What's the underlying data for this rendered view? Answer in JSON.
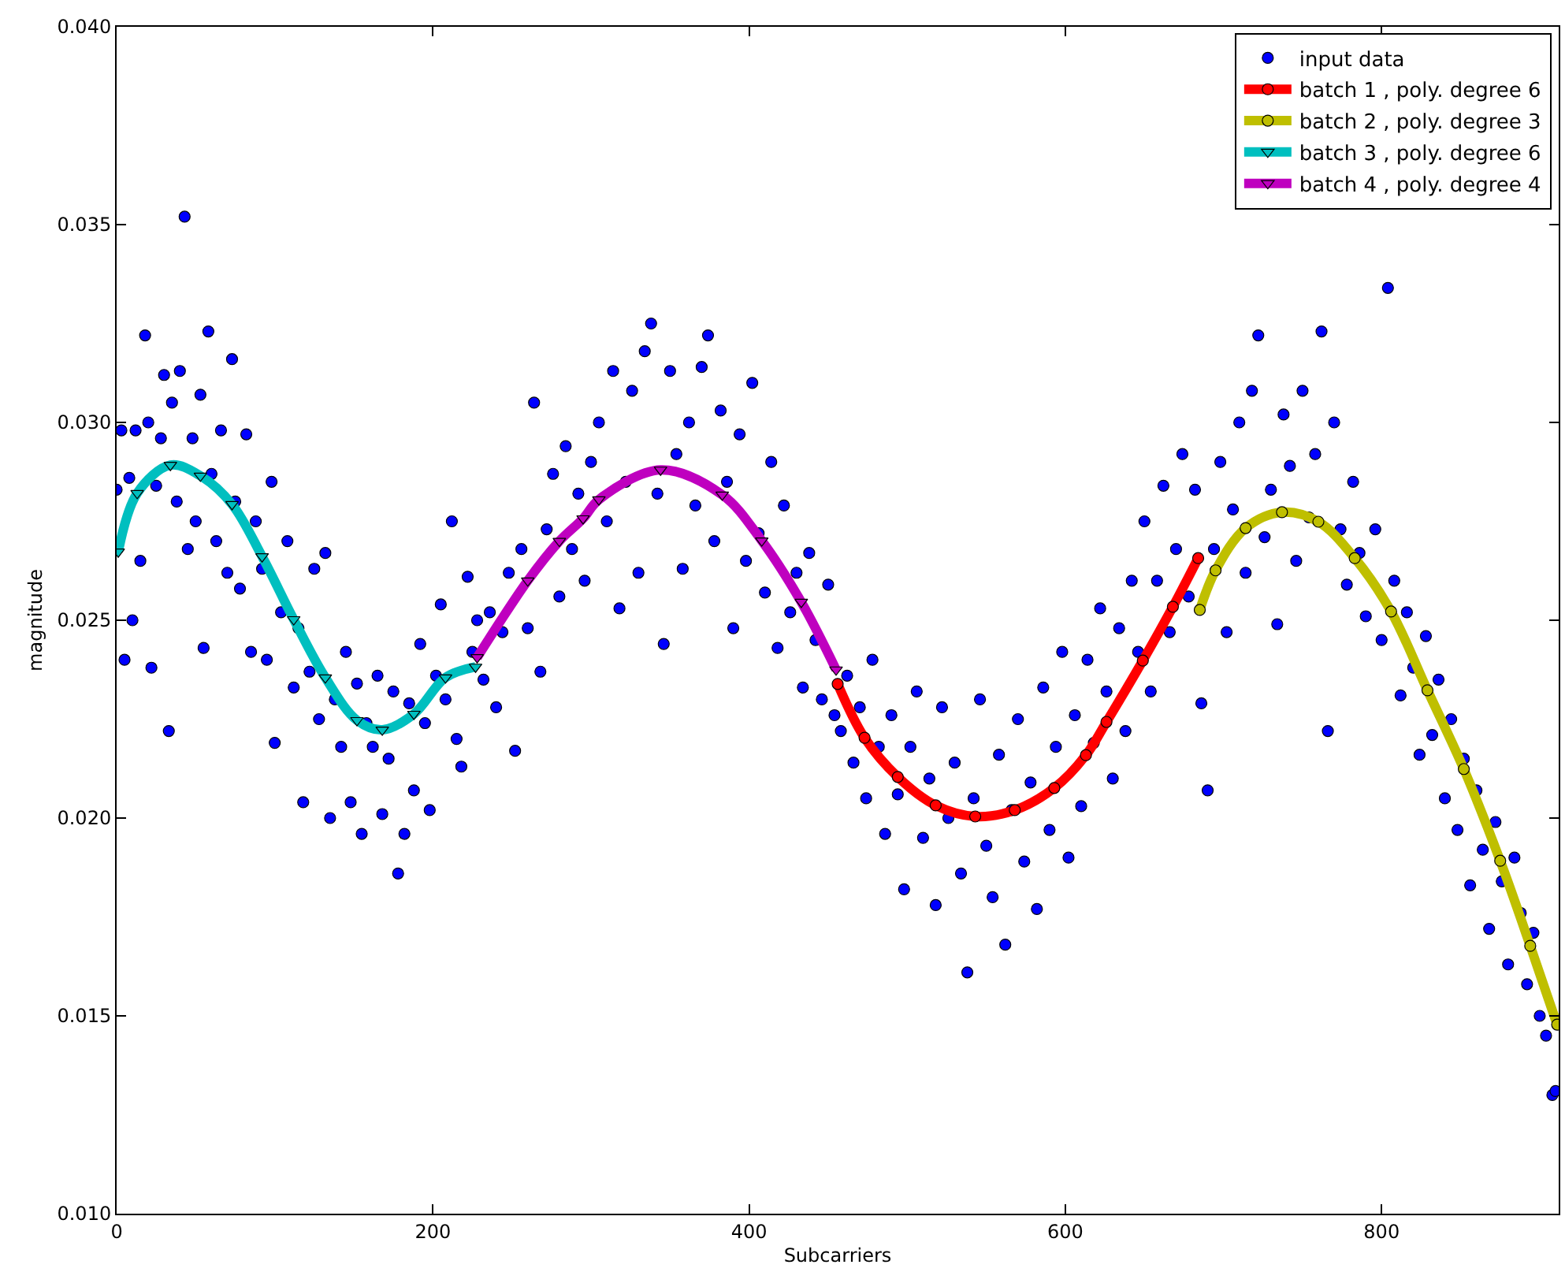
{
  "chart_data": {
    "type": "scatter",
    "xlabel": "Subcarriers",
    "ylabel": "magnitude",
    "xlim": [
      0,
      912
    ],
    "xticks": [
      0,
      200,
      400,
      600,
      800
    ],
    "ylim": [
      0.01,
      0.04
    ],
    "yticks": [
      {
        "value": 0.01,
        "label": "0.010"
      },
      {
        "value": 0.015,
        "label": "0.015"
      },
      {
        "value": 0.02,
        "label": "0.020"
      },
      {
        "value": 0.025,
        "label": "0.025"
      },
      {
        "value": 0.03,
        "label": "0.030"
      },
      {
        "value": 0.035,
        "label": "0.035"
      },
      {
        "value": 0.04,
        "label": "0.040"
      }
    ],
    "grid": false,
    "legend": "top right",
    "series": [
      {
        "name": "input data",
        "marker": "circle",
        "color": "#0000ff",
        "x": [
          0,
          3,
          5,
          8,
          10,
          12,
          15,
          18,
          20,
          22,
          25,
          28,
          30,
          33,
          35,
          38,
          40,
          43,
          45,
          48,
          50,
          53,
          55,
          58,
          60,
          63,
          66,
          70,
          73,
          75,
          78,
          82,
          85,
          88,
          92,
          95,
          98,
          100,
          104,
          108,
          112,
          115,
          118,
          122,
          125,
          128,
          132,
          135,
          138,
          142,
          145,
          148,
          152,
          155,
          158,
          162,
          165,
          168,
          172,
          175,
          178,
          182,
          185,
          188,
          192,
          195,
          198,
          202,
          205,
          208,
          212,
          215,
          218,
          222,
          225,
          228,
          232,
          236,
          240,
          244,
          248,
          252,
          256,
          260,
          264,
          268,
          272,
          276,
          280,
          284,
          288,
          292,
          296,
          300,
          305,
          310,
          314,
          318,
          322,
          326,
          330,
          334,
          338,
          342,
          346,
          350,
          354,
          358,
          362,
          366,
          370,
          374,
          378,
          382,
          386,
          390,
          394,
          398,
          402,
          406,
          410,
          414,
          418,
          422,
          426,
          430,
          434,
          438,
          442,
          446,
          450,
          454,
          458,
          462,
          466,
          470,
          474,
          478,
          482,
          486,
          490,
          494,
          498,
          502,
          506,
          510,
          514,
          518,
          522,
          526,
          530,
          534,
          538,
          542,
          546,
          550,
          554,
          558,
          562,
          566,
          570,
          574,
          578,
          582,
          586,
          590,
          594,
          598,
          602,
          606,
          610,
          614,
          618,
          622,
          626,
          630,
          634,
          638,
          642,
          646,
          650,
          654,
          658,
          662,
          666,
          670,
          674,
          678,
          682,
          686,
          690,
          694,
          698,
          702,
          706,
          710,
          714,
          718,
          722,
          726,
          730,
          734,
          738,
          742,
          746,
          750,
          754,
          758,
          762,
          766,
          770,
          774,
          778,
          782,
          786,
          790,
          796,
          800,
          804,
          808,
          812,
          816,
          820,
          824,
          828,
          832,
          836,
          840,
          844,
          848,
          852,
          856,
          860,
          864,
          868,
          872,
          876,
          880,
          884,
          888,
          892,
          896,
          900,
          904,
          908,
          910
        ],
        "values": [
          0.0283,
          0.0298,
          0.024,
          0.0286,
          0.025,
          0.0298,
          0.0265,
          0.0322,
          0.03,
          0.0238,
          0.0284,
          0.0296,
          0.0312,
          0.0222,
          0.0305,
          0.028,
          0.0313,
          0.0352,
          0.0268,
          0.0296,
          0.0275,
          0.0307,
          0.0243,
          0.0323,
          0.0287,
          0.027,
          0.0298,
          0.0262,
          0.0316,
          0.028,
          0.0258,
          0.0297,
          0.0242,
          0.0275,
          0.0263,
          0.024,
          0.0285,
          0.0219,
          0.0252,
          0.027,
          0.0233,
          0.0248,
          0.0204,
          0.0237,
          0.0263,
          0.0225,
          0.0267,
          0.02,
          0.023,
          0.0218,
          0.0242,
          0.0204,
          0.0234,
          0.0196,
          0.0224,
          0.0218,
          0.0236,
          0.0201,
          0.0215,
          0.0232,
          0.0186,
          0.0196,
          0.0229,
          0.0207,
          0.0244,
          0.0224,
          0.0202,
          0.0236,
          0.0254,
          0.023,
          0.0275,
          0.022,
          0.0213,
          0.0261,
          0.0242,
          0.025,
          0.0235,
          0.0252,
          0.0228,
          0.0247,
          0.0262,
          0.0217,
          0.0268,
          0.0248,
          0.0305,
          0.0237,
          0.0273,
          0.0287,
          0.0256,
          0.0294,
          0.0268,
          0.0282,
          0.026,
          0.029,
          0.03,
          0.0275,
          0.0313,
          0.0253,
          0.0285,
          0.0308,
          0.0262,
          0.0318,
          0.0325,
          0.0282,
          0.0244,
          0.0313,
          0.0292,
          0.0263,
          0.03,
          0.0279,
          0.0314,
          0.0322,
          0.027,
          0.0303,
          0.0285,
          0.0248,
          0.0297,
          0.0265,
          0.031,
          0.0272,
          0.0257,
          0.029,
          0.0243,
          0.0279,
          0.0252,
          0.0262,
          0.0233,
          0.0267,
          0.0245,
          0.023,
          0.0259,
          0.0226,
          0.0222,
          0.0236,
          0.0214,
          0.0228,
          0.0205,
          0.024,
          0.0218,
          0.0196,
          0.0226,
          0.0206,
          0.0182,
          0.0218,
          0.0232,
          0.0195,
          0.021,
          0.0178,
          0.0228,
          0.02,
          0.0214,
          0.0186,
          0.0161,
          0.0205,
          0.023,
          0.0193,
          0.018,
          0.0216,
          0.0168,
          0.0202,
          0.0225,
          0.0189,
          0.0209,
          0.0177,
          0.0233,
          0.0197,
          0.0218,
          0.0242,
          0.019,
          0.0226,
          0.0203,
          0.024,
          0.0219,
          0.0253,
          0.0232,
          0.021,
          0.0248,
          0.0222,
          0.026,
          0.0242,
          0.0275,
          0.0232,
          0.026,
          0.0284,
          0.0247,
          0.0268,
          0.0292,
          0.0256,
          0.0283,
          0.0229,
          0.0207,
          0.0268,
          0.029,
          0.0247,
          0.0278,
          0.03,
          0.0262,
          0.0308,
          0.0322,
          0.0271,
          0.0283,
          0.0249,
          0.0302,
          0.0289,
          0.0265,
          0.0308,
          0.0276,
          0.0292,
          0.0323,
          0.0222,
          0.03,
          0.0273,
          0.0259,
          0.0285,
          0.0267,
          0.0251,
          0.0273,
          0.0245,
          0.0334,
          0.026,
          0.0231,
          0.0252,
          0.0238,
          0.0216,
          0.0246,
          0.0221,
          0.0235,
          0.0205,
          0.0225,
          0.0197,
          0.0215,
          0.0183,
          0.0207,
          0.0192,
          0.0172,
          0.0199,
          0.0184,
          0.0163,
          0.019,
          0.0176,
          0.0158,
          0.0171,
          0.015,
          0.0145,
          0.013,
          0.0131
        ]
      },
      {
        "name": "batch 1 , poly. degree 6",
        "type": "line",
        "marker": "circle",
        "color": "#ff0000",
        "x": [
          456,
          473,
          494,
          518,
          543,
          568,
          593,
          613,
          626,
          649,
          668,
          684
        ],
        "values": [
          0.02339,
          0.02203,
          0.02104,
          0.02032,
          0.02004,
          0.0202,
          0.02076,
          0.02159,
          0.02243,
          0.02398,
          0.02534,
          0.02657
        ]
      },
      {
        "name": "batch 2 , poly. degree 3",
        "type": "line",
        "marker": "circle",
        "color": "#bfbf00",
        "x": [
          685,
          695,
          714,
          737,
          760,
          783,
          806,
          829,
          852,
          875,
          894,
          911
        ],
        "values": [
          0.02526,
          0.02626,
          0.02733,
          0.02773,
          0.02749,
          0.02657,
          0.02522,
          0.02323,
          0.02124,
          0.01892,
          0.01677,
          0.01478
        ]
      },
      {
        "name": "batch 3 , poly. degree 6",
        "type": "line",
        "marker": "triangle",
        "color": "#00bfbf",
        "x": [
          1,
          13,
          34,
          53,
          73,
          92,
          112,
          132,
          152,
          168,
          188,
          208,
          227
        ],
        "values": [
          0.02673,
          0.02821,
          0.02892,
          0.02865,
          0.02793,
          0.02661,
          0.02502,
          0.02355,
          0.02247,
          0.02223,
          0.02263,
          0.02355,
          0.02382
        ]
      },
      {
        "name": "batch 4 , poly. degree 4",
        "type": "line",
        "marker": "triangle",
        "color": "#bf00bf",
        "x": [
          228,
          260,
          280,
          295,
          305,
          344,
          383,
          408,
          433,
          455
        ],
        "values": [
          0.02406,
          0.026,
          0.027,
          0.02757,
          0.02805,
          0.0288,
          0.02817,
          0.02701,
          0.02546,
          0.02375
        ]
      }
    ]
  }
}
